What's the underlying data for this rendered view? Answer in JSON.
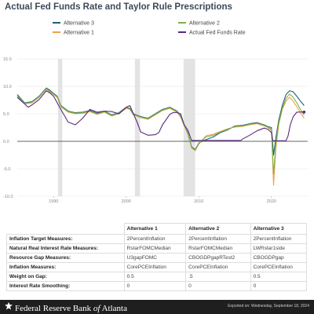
{
  "title": "Actual Fed Funds Rate and Taylor Rule Prescriptions",
  "colors": {
    "alt3": "#1f5f7a",
    "alt1": "#f0a04b",
    "alt2": "#7bb24a",
    "actual": "#5a2a7a",
    "recession": "#e3e3e3"
  },
  "chart_data": {
    "type": "line",
    "title": "Actual Fed Funds Rate and Taylor Rule Prescriptions",
    "xlabel": "",
    "ylabel": "",
    "xlim": [
      1985,
      2025
    ],
    "ylim": [
      -10,
      15
    ],
    "y_ticks": [
      "15.0",
      "10.0",
      "5.0",
      "0.0",
      "-5.0",
      "-10.0"
    ],
    "x_ticks": [
      "1990",
      "2000",
      "2010",
      "2020"
    ],
    "legend": [
      "Alternative 3",
      "Alternative 1",
      "Alternative 2",
      "Actual Fed Funds Rate"
    ],
    "legend_placement": "top",
    "recessions": [
      [
        1990.6,
        1991.2
      ],
      [
        2001.2,
        2001.9
      ],
      [
        2007.9,
        2009.5
      ]
    ],
    "series": [
      {
        "name": "Alternative 3",
        "color_key": "alt3",
        "x": [
          1985.0,
          1986.0,
          1987.0,
          1988.0,
          1989.0,
          1989.5,
          1990.0,
          1990.5,
          1991.0,
          1992.0,
          1993.0,
          1994.0,
          1995.0,
          1996.0,
          1997.0,
          1998.0,
          1999.0,
          2000.0,
          2000.5,
          2001.0,
          2002.0,
          2003.0,
          2004.0,
          2005.0,
          2006.0,
          2007.0,
          2007.5,
          2008.0,
          2008.5,
          2009.0,
          2009.5,
          2010.0,
          2011.0,
          2012.0,
          2013.0,
          2014.0,
          2015.0,
          2016.0,
          2017.0,
          2018.0,
          2019.0,
          2019.5,
          2020.0,
          2020.3,
          2020.6,
          2021.0,
          2021.5,
          2022.0,
          2022.5,
          2023.0,
          2023.5,
          2024.0,
          2024.5
        ],
        "y": [
          8.5,
          7.0,
          7.2,
          8.2,
          9.7,
          9.3,
          8.7,
          8.2,
          6.5,
          5.5,
          5.2,
          5.3,
          5.6,
          5.1,
          5.5,
          4.8,
          5.2,
          6.2,
          6.0,
          5.0,
          4.5,
          4.2,
          5.0,
          5.8,
          6.2,
          5.5,
          4.6,
          3.0,
          1.5,
          -1.0,
          -1.5,
          -0.3,
          0.3,
          0.8,
          1.6,
          2.1,
          2.8,
          2.9,
          3.2,
          3.4,
          3.0,
          2.7,
          2.5,
          -2.5,
          0.5,
          3.8,
          6.5,
          8.5,
          9.2,
          9.0,
          8.2,
          7.3,
          6.5
        ]
      },
      {
        "name": "Alternative 1",
        "color_key": "alt1",
        "x": [
          1985.0,
          1986.0,
          1987.0,
          1988.0,
          1989.0,
          1989.5,
          1990.0,
          1990.5,
          1991.0,
          1992.0,
          1993.0,
          1994.0,
          1995.0,
          1996.0,
          1997.0,
          1998.0,
          1999.0,
          2000.0,
          2000.5,
          2001.0,
          2002.0,
          2003.0,
          2004.0,
          2005.0,
          2006.0,
          2007.0,
          2007.5,
          2008.0,
          2008.5,
          2009.0,
          2009.5,
          2010.0,
          2011.0,
          2012.0,
          2013.0,
          2014.0,
          2015.0,
          2016.0,
          2017.0,
          2018.0,
          2019.0,
          2019.5,
          2020.0,
          2020.3,
          2020.6,
          2021.0,
          2021.5,
          2022.0,
          2022.5,
          2023.0,
          2023.5,
          2024.0,
          2024.5
        ],
        "y": [
          8.2,
          6.8,
          7.0,
          8.0,
          9.5,
          9.0,
          8.5,
          8.0,
          6.3,
          5.3,
          5.0,
          5.1,
          5.4,
          4.9,
          5.3,
          4.6,
          5.0,
          6.0,
          5.8,
          4.8,
          4.3,
          4.0,
          4.8,
          5.6,
          6.0,
          5.3,
          4.4,
          2.8,
          1.3,
          -1.2,
          -1.7,
          -0.5,
          1.0,
          1.3,
          1.8,
          2.3,
          2.6,
          2.7,
          3.0,
          3.2,
          2.8,
          2.5,
          2.0,
          -8.0,
          -1.5,
          3.0,
          5.8,
          7.3,
          8.0,
          7.3,
          6.3,
          5.2,
          4.2
        ]
      },
      {
        "name": "Alternative 2",
        "color_key": "alt2",
        "x": [
          1985.0,
          1986.0,
          1987.0,
          1988.0,
          1989.0,
          1989.5,
          1990.0,
          1990.5,
          1991.0,
          1992.0,
          1993.0,
          1994.0,
          1995.0,
          1996.0,
          1997.0,
          1998.0,
          1999.0,
          2000.0,
          2000.5,
          2001.0,
          2002.0,
          2003.0,
          2004.0,
          2005.0,
          2006.0,
          2007.0,
          2007.5,
          2008.0,
          2008.5,
          2009.0,
          2009.5,
          2010.0,
          2011.0,
          2012.0,
          2013.0,
          2014.0,
          2015.0,
          2016.0,
          2017.0,
          2018.0,
          2019.0,
          2019.5,
          2020.0,
          2020.3,
          2020.6,
          2021.0,
          2021.5,
          2022.0,
          2022.5,
          2023.0,
          2023.5,
          2024.0,
          2024.5
        ],
        "y": [
          8.3,
          6.9,
          7.1,
          8.1,
          9.6,
          9.1,
          8.6,
          8.1,
          6.4,
          5.4,
          5.1,
          5.2,
          5.5,
          5.0,
          5.4,
          4.7,
          5.1,
          6.1,
          5.9,
          4.9,
          4.4,
          4.1,
          4.9,
          5.7,
          6.1,
          5.4,
          4.5,
          2.9,
          1.4,
          -1.1,
          -1.6,
          -0.4,
          0.8,
          1.1,
          1.7,
          2.2,
          2.7,
          2.8,
          3.1,
          3.3,
          2.9,
          2.6,
          2.2,
          -6.0,
          -0.5,
          3.3,
          6.0,
          7.8,
          8.6,
          8.0,
          7.0,
          5.8,
          4.8
        ]
      },
      {
        "name": "Actual Fed Funds Rate",
        "color_key": "actual",
        "x": [
          1985.0,
          1986.0,
          1986.5,
          1987.0,
          1988.0,
          1989.0,
          1989.5,
          1990.0,
          1991.0,
          1992.0,
          1993.0,
          1994.0,
          1995.0,
          1996.0,
          1997.0,
          1998.0,
          1999.0,
          2000.0,
          2000.5,
          2001.0,
          2001.5,
          2002.0,
          2003.0,
          2004.0,
          2004.5,
          2005.0,
          2006.0,
          2006.5,
          2007.0,
          2007.5,
          2008.0,
          2008.5,
          2009.0,
          2015.8,
          2016.0,
          2017.0,
          2018.0,
          2019.0,
          2019.5,
          2020.0,
          2020.2,
          2022.0,
          2022.3,
          2022.6,
          2023.0,
          2023.5,
          2024.0,
          2024.5
        ],
        "y": [
          8.0,
          6.8,
          6.2,
          6.6,
          7.6,
          9.2,
          8.8,
          8.2,
          5.8,
          3.5,
          3.0,
          4.2,
          5.8,
          5.3,
          5.5,
          5.4,
          5.0,
          6.2,
          6.5,
          5.0,
          3.5,
          1.7,
          1.1,
          1.2,
          1.6,
          3.0,
          4.9,
          5.25,
          5.25,
          5.0,
          3.0,
          2.0,
          0.15,
          0.15,
          0.4,
          1.1,
          1.9,
          2.4,
          2.2,
          1.6,
          0.1,
          0.1,
          1.0,
          3.0,
          4.5,
          5.3,
          5.33,
          5.33
        ]
      }
    ]
  },
  "table": {
    "headers": [
      "",
      "Alternative 1",
      "Alternative 2",
      "Alternative 3"
    ],
    "rows": [
      {
        "label": "Inflation Target Measures:",
        "values": [
          "2PercentInflation",
          "2PercentInflation",
          "2PercentInflation"
        ]
      },
      {
        "label": "Natural Real Interest Rate Measures:",
        "values": [
          "RstarFOMCMedian",
          "RstarFOMCMedian",
          "LWRstar1side"
        ]
      },
      {
        "label": "Resource Gap Measures:",
        "values": [
          "U3gapFOMC",
          "CBOGDPgapRTest2",
          "CBOGDPgap"
        ]
      },
      {
        "label": "Inflation Measures:",
        "values": [
          "CorePCEInflation",
          "CorePCEInflation",
          "CorePCEInflation"
        ]
      },
      {
        "label": "Weight on Gap:",
        "values": [
          "0.5",
          ".5",
          "0.5"
        ]
      },
      {
        "label": "Interest Rate Smoothing:",
        "values": [
          "0",
          "0",
          "0"
        ]
      }
    ]
  },
  "footer": {
    "org_prefix": "Federal Reserve Bank ",
    "org_of": "of",
    "org_suffix": " Atlanta",
    "exported": "Exported on: Wednesday, September 18, 2024"
  }
}
